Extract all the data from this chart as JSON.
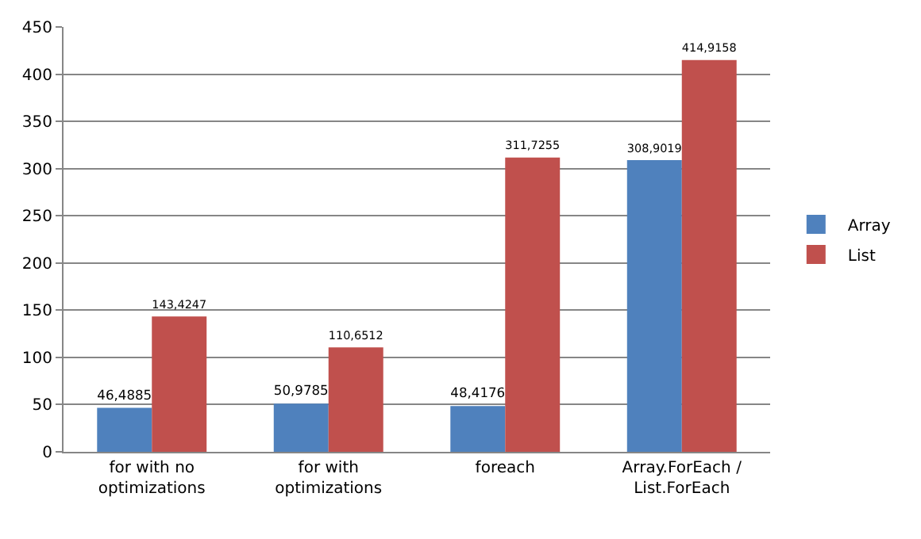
{
  "chart_data": {
    "type": "bar",
    "categories": [
      "for with no\noptimizations",
      "for with\noptimizations",
      "foreach",
      "Array.ForEach /\nList.ForEach"
    ],
    "series": [
      {
        "name": "Array",
        "color": "#4f81bd",
        "values": [
          46.4885,
          50.9785,
          48.4176,
          308.9019
        ],
        "value_labels": [
          "46,4885",
          "50,9785",
          "48,4176",
          "308,9019"
        ]
      },
      {
        "name": "List",
        "color": "#c0504d",
        "values": [
          143.4247,
          110.6512,
          311.7255,
          414.9158
        ],
        "value_labels": [
          "143,4247",
          "110,6512",
          "311,7255",
          "414,9158"
        ]
      }
    ],
    "ylim": [
      0,
      450
    ],
    "yticks": [
      0,
      50,
      100,
      150,
      200,
      250,
      300,
      350,
      400,
      450
    ],
    "grid": "y",
    "legend": "right"
  }
}
